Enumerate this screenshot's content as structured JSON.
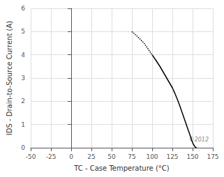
{
  "chart_data": {
    "type": "line",
    "xlabel": "TC - Case Temperature (°C)",
    "ylabel": "IDS - Drain-to-Source Current (A)",
    "xlim": [
      -50,
      175
    ],
    "ylim": [
      0,
      6
    ],
    "xticks": [
      -50,
      -25,
      0,
      25,
      50,
      75,
      100,
      125,
      150,
      175
    ],
    "yticks": [
      0,
      1,
      2,
      3,
      4,
      5,
      6
    ],
    "grid": true,
    "annotations": [
      "©2012"
    ],
    "series": [
      {
        "x": [
          75,
          80,
          85,
          90,
          95,
          100
        ],
        "values": [
          5.0,
          4.85,
          4.68,
          4.5,
          4.25,
          4.0
        ],
        "color": "#000000",
        "line_style": "dotted"
      },
      {
        "x": [
          100,
          105,
          110,
          115,
          120,
          125,
          128,
          131,
          134,
          137,
          140,
          142,
          144,
          146,
          148,
          150,
          151,
          152,
          153,
          154,
          155
        ],
        "values": [
          4.0,
          3.75,
          3.48,
          3.18,
          2.88,
          2.58,
          2.35,
          2.1,
          1.82,
          1.52,
          1.22,
          1.02,
          0.82,
          0.62,
          0.42,
          0.22,
          0.15,
          0.09,
          0.04,
          0.01,
          0.0
        ],
        "color": "#000000",
        "line_style": "solid"
      }
    ]
  }
}
